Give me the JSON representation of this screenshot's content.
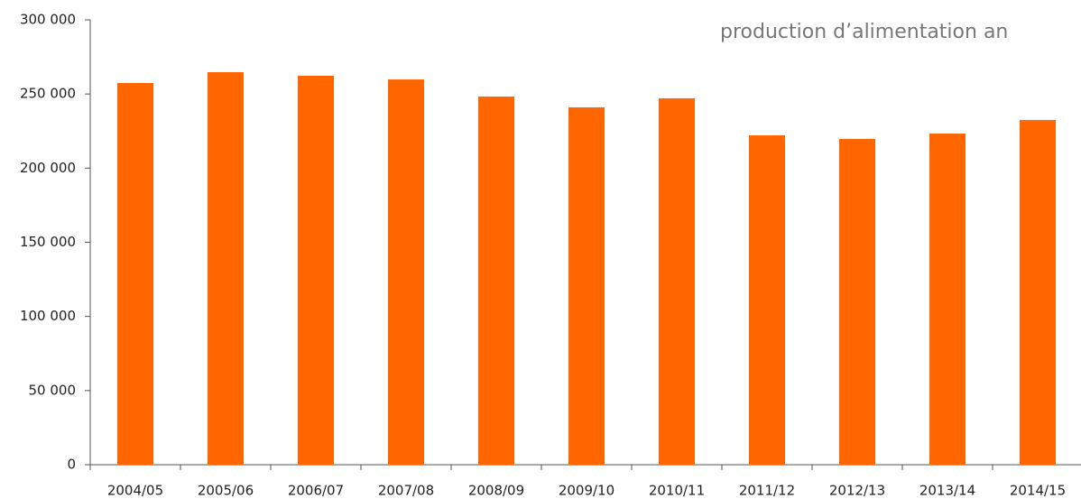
{
  "chart_data": {
    "type": "bar",
    "subtitle": "production d’alimentation an",
    "categories": [
      "2004/05",
      "2005/06",
      "2006/07",
      "2007/08",
      "2008/09",
      "2009/10",
      "2010/11",
      "2011/12",
      "2012/13",
      "2013/14",
      "2014/15"
    ],
    "values": [
      257400,
      264700,
      262300,
      259800,
      248300,
      241000,
      247100,
      222100,
      219700,
      223300,
      232500
    ],
    "color": "#ff6600",
    "ylim": [
      0,
      300000
    ],
    "yticks": [
      0,
      {
        "value": 50000,
        "label": "50 000"
      },
      {
        "value": 100000,
        "label": "100 000"
      },
      {
        "value": 150000,
        "label": "150 000"
      },
      {
        "value": 200000,
        "label": "200 000"
      },
      {
        "value": 250000,
        "label": "250 000"
      },
      {
        "value": 300000,
        "label": "300 000"
      }
    ],
    "grid": false
  }
}
